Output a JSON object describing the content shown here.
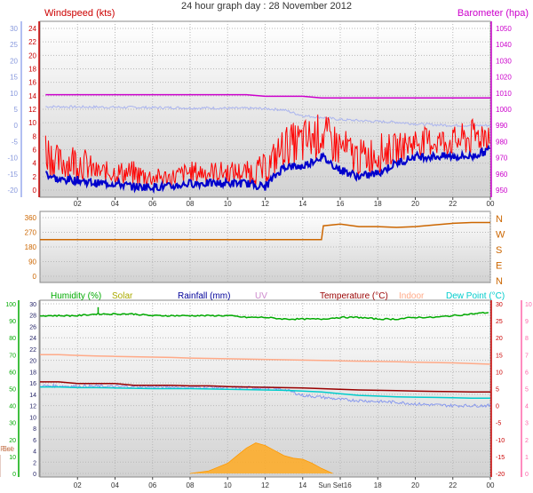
{
  "title": "24 hour graph day : 28 November 2012",
  "chart_data": [
    {
      "type": "line",
      "panel": "wind-pressure",
      "legend": {
        "left": "Windspeed (kts)",
        "right": "Barometer (hpa)"
      },
      "colors": {
        "wind": "#ff0000",
        "gust_fill": "#dd0000",
        "wind_avg": "#0000cc",
        "barometer": "#cc00cc",
        "temp_ghost": "#aab4ee"
      },
      "axes": {
        "left_ticks": [
          "24",
          "22",
          "20",
          "18",
          "16",
          "14",
          "12",
          "10",
          "8",
          "6",
          "4",
          "2",
          "0"
        ],
        "left_ylim": [
          0,
          25
        ],
        "right_ticks": [
          "1050",
          "1040",
          "1030",
          "1020",
          "1010",
          "1000",
          "990",
          "980",
          "970",
          "960",
          "950"
        ],
        "right_ylim": [
          945,
          1053
        ],
        "far_left_ticks": [
          "30",
          "25",
          "20",
          "15",
          "10",
          "5",
          "0",
          "-5",
          "-10",
          "-15",
          "-20"
        ],
        "far_left_ylim": [
          -22,
          32
        ],
        "x_ticks": [
          "02",
          "04",
          "06",
          "08",
          "10",
          "12",
          "14",
          "16",
          "18",
          "20",
          "22",
          "00"
        ],
        "x_hours": [
          2,
          4,
          6,
          8,
          10,
          12,
          14,
          16,
          18,
          20,
          22,
          24
        ],
        "xlim": [
          0,
          24
        ]
      },
      "series": {
        "hours": [
          0.3,
          1,
          2,
          3,
          4,
          5,
          6,
          7,
          8,
          9,
          10,
          11,
          12,
          13,
          14,
          15,
          16,
          17,
          18,
          19,
          20,
          21,
          22,
          23,
          24
        ],
        "wind_gust": [
          9,
          6,
          7,
          4,
          4,
          4,
          3,
          3,
          4,
          4,
          4,
          4,
          5,
          9,
          10,
          11,
          9,
          7,
          8,
          8,
          9,
          9,
          9,
          10,
          11
        ],
        "wind_avg": [
          2.5,
          1.5,
          1.5,
          1,
          1,
          0.5,
          0.5,
          0.5,
          1,
          1,
          1,
          1,
          0.5,
          3.5,
          3.5,
          5,
          3,
          2,
          2.5,
          4,
          5,
          5,
          5,
          5,
          6
        ],
        "barometer": [
          1009,
          1009,
          1009,
          1009,
          1009,
          1009,
          1009,
          1009,
          1009,
          1009,
          1009,
          1009,
          1008,
          1008,
          1008,
          1007,
          1007,
          1007,
          1007,
          1007,
          1007,
          1007,
          1007,
          1007,
          1007
        ],
        "temp_ghost": [
          5.8,
          5.8,
          5.7,
          5.7,
          5.6,
          5.6,
          5.5,
          5.5,
          5.4,
          5.4,
          5.3,
          5.3,
          5.2,
          4.8,
          3,
          2.5,
          1.8,
          1.5,
          1.2,
          1,
          0.5,
          0.2,
          0,
          0,
          0
        ]
      }
    },
    {
      "type": "line",
      "panel": "wind-direction",
      "axes": {
        "left_ticks": [
          "360",
          "270",
          "180",
          "90",
          "0"
        ],
        "ylim": [
          0,
          360
        ],
        "compass": [
          "N",
          "W",
          "S",
          "E",
          "N"
        ]
      },
      "colors": {
        "direction": "#cc6600",
        "compass": "#cc6600"
      },
      "series": {
        "hours": [
          0,
          1,
          2,
          3,
          4,
          5,
          6,
          7,
          8,
          9,
          10,
          11,
          12,
          13,
          14,
          15,
          15.1,
          16,
          17,
          18,
          19,
          20,
          21,
          22,
          23,
          24
        ],
        "direction": [
          225,
          225,
          225,
          225,
          225,
          225,
          225,
          225,
          225,
          225,
          225,
          225,
          225,
          225,
          225,
          225,
          310,
          320,
          305,
          305,
          300,
          305,
          315,
          325,
          330,
          330
        ]
      }
    },
    {
      "type": "line",
      "panel": "temperature-humidity-solar",
      "legend": [
        "Humidity (%)",
        "Solar",
        "Rainfall (mm)",
        "UV",
        "Temperature (°C)",
        "Indoor",
        "Dew Point (°C)"
      ],
      "colors": {
        "humidity": "#00aa00",
        "solar": "#ffaa22",
        "rainfall": "#000099",
        "uv": "#cc88cc",
        "temperature": "#990000",
        "indoor": "#ffaa88",
        "dewpoint": "#00cccc",
        "temp_noisy": "#8899ee"
      },
      "axes": {
        "humidity_ticks": [
          "100",
          "90",
          "80",
          "70",
          "60",
          "50",
          "40",
          "30",
          "20",
          "10",
          "0"
        ],
        "humidity_ylim": [
          0,
          100
        ],
        "rain_ticks": [
          "30",
          "28",
          "26",
          "24",
          "22",
          "20",
          "18",
          "16",
          "14",
          "12",
          "10",
          "8",
          "6",
          "4",
          "2",
          "0"
        ],
        "rain_ylim": [
          0,
          30
        ],
        "temp_ticks": [
          "30",
          "25",
          "20",
          "15",
          "10",
          "5",
          "0",
          "-5",
          "-10",
          "-15",
          "-20"
        ],
        "temp_ylim": [
          -20,
          30
        ],
        "uv_ticks": [
          "10",
          "9",
          "8",
          "7",
          "6",
          "5",
          "4",
          "3",
          "2",
          "1",
          "0"
        ],
        "uv_ylim": [
          0,
          10
        ],
        "x_ticks": [
          "02",
          "04",
          "06",
          "08",
          "10",
          "12",
          "14",
          "16",
          "18",
          "20",
          "22",
          "00"
        ],
        "x_hours": [
          2,
          4,
          6,
          8,
          10,
          12,
          14,
          16,
          18,
          20,
          22,
          24
        ],
        "xlim": [
          0,
          24
        ]
      },
      "events": {
        "sunrise": "Sun Rise",
        "sunset": "Sun Set",
        "sunrise_hour": 8,
        "sunset_hour": 15.6
      },
      "x_tick_overlap": "Sun Set16",
      "series": {
        "hours": [
          0,
          1,
          2,
          3,
          4,
          5,
          6,
          7,
          8,
          9,
          10,
          11,
          12,
          13,
          14,
          15,
          16,
          17,
          18,
          19,
          20,
          21,
          22,
          23,
          24
        ],
        "humidity": [
          93,
          93,
          93,
          94,
          94,
          94,
          93,
          93,
          93,
          93,
          93,
          92,
          92,
          91,
          91,
          91,
          92,
          92,
          91,
          91,
          92,
          92,
          93,
          94,
          95
        ],
        "temperature": [
          7,
          7,
          6.5,
          6.5,
          6.5,
          6,
          6,
          6,
          5.8,
          5.8,
          5.6,
          5.5,
          5.4,
          5.3,
          5.2,
          5,
          4.8,
          4.6,
          4.5,
          4.4,
          4.3,
          4.2,
          4.1,
          4,
          4
        ],
        "temp_noisy": [
          5.8,
          5.8,
          5.7,
          5.7,
          5.6,
          5.6,
          5.5,
          5.5,
          5.4,
          5.4,
          5.3,
          5.3,
          5.2,
          4.8,
          3,
          2.5,
          1.8,
          1.5,
          1.2,
          1,
          0.5,
          0.2,
          0,
          0,
          0
        ],
        "dewpoint": [
          5.5,
          5.5,
          5.3,
          5.3,
          5.2,
          5.1,
          5,
          5,
          5,
          4.9,
          4.8,
          4.7,
          4.6,
          4.5,
          4.3,
          4,
          3.5,
          3,
          2.8,
          2.6,
          2.5,
          2.4,
          2.3,
          2.2,
          2.2
        ],
        "indoor": [
          15,
          15,
          14.8,
          14.6,
          14.5,
          14.4,
          14.3,
          14.2,
          14,
          13.9,
          13.8,
          13.7,
          13.6,
          13.5,
          13.4,
          13.3,
          13.2,
          13.1,
          13,
          12.9,
          12.8,
          12.7,
          12.6,
          12.4,
          12.2
        ],
        "solar_hours": [
          8,
          9,
          10,
          10.5,
          11,
          11.5,
          12,
          12.5,
          13,
          13.5,
          14,
          14.5,
          15,
          15.6
        ],
        "solar": [
          0,
          0.5,
          2,
          3.5,
          5,
          6,
          5.5,
          4.5,
          3.5,
          3,
          2.8,
          2,
          1,
          0
        ],
        "rain_spike_hour": 3.1,
        "rain_spike_pct": 98
      }
    }
  ]
}
